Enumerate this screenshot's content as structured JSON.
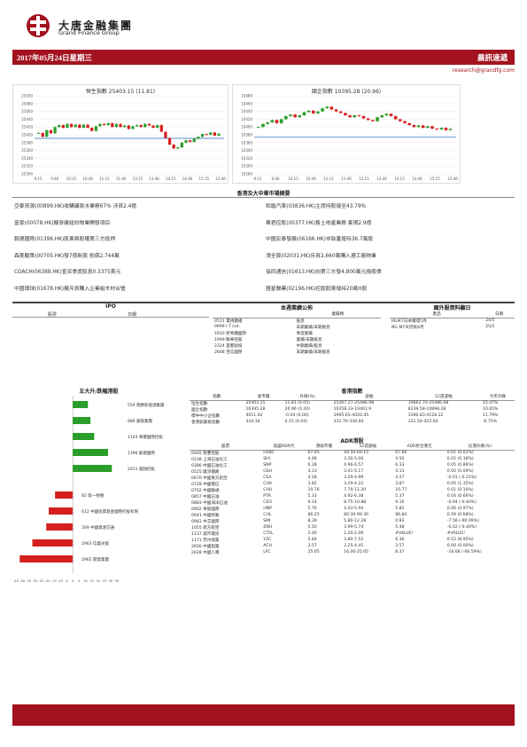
{
  "header": {
    "logo_cn": "大唐金融集團",
    "logo_en": "Grand Finance Group",
    "date": "2017年05月24日星期三",
    "title": "晨訊速遞",
    "email": "research@grandfg.com"
  },
  "colors": {
    "brand": "#a3121f",
    "up": "#2a9d2a",
    "down": "#d61f1f"
  },
  "chart_data": [
    {
      "type": "candlestick",
      "title": "恒生指數 25403.15 (11.81)",
      "x_ticks": [
        "9:15",
        "9:46",
        "10:15",
        "10:46",
        "11:15",
        "11:46",
        "13:15",
        "13:46",
        "14:15",
        "14:46",
        "15:15",
        "15:46"
      ],
      "y_ticks": [
        "25500",
        "25480",
        "25460",
        "25440",
        "25420",
        "25400",
        "25380",
        "25360",
        "25340",
        "25320",
        "25300"
      ],
      "ylim": [
        25300,
        25500
      ],
      "reference": 25391,
      "values": [
        25405,
        25395,
        25412,
        25404,
        25420,
        25425,
        25418,
        25428,
        25420,
        25426,
        25418,
        25426,
        25418,
        25410,
        25422,
        25428,
        25425,
        25430,
        25420,
        25428,
        25420,
        25424,
        25415,
        25422,
        25425,
        25420,
        25428,
        25424,
        25418,
        25425,
        25408,
        25392,
        25375,
        25365,
        25368,
        25380,
        25386,
        25382,
        25390,
        25395,
        25402,
        25400,
        25406,
        25398,
        25403
      ]
    },
    {
      "type": "candlestick",
      "title": "國企指數 10395.28 (20.96)",
      "x_ticks": [
        "9:15",
        "9:46",
        "10:15",
        "10:46",
        "11:15",
        "11:46",
        "13:15",
        "13:46",
        "14:15",
        "14:46",
        "15:15",
        "15:46"
      ],
      "y_ticks": [
        "10480",
        "10460",
        "10440",
        "10420",
        "10400",
        "10380",
        "10360",
        "10340",
        "10320",
        "10300",
        "10280"
      ],
      "ylim": [
        10280,
        10480
      ],
      "reference": 10374,
      "values": [
        10400,
        10408,
        10412,
        10418,
        10410,
        10420,
        10428,
        10432,
        10425,
        10430,
        10438,
        10442,
        10435,
        10440,
        10448,
        10452,
        10445,
        10440,
        10436,
        10430,
        10425,
        10430,
        10428,
        10422,
        10418,
        10415,
        10425,
        10430,
        10434,
        10428,
        10420,
        10415,
        10410,
        10405,
        10400,
        10404,
        10398,
        10402,
        10396,
        10394,
        10398,
        10392,
        10395
      ]
    }
  ],
  "market_summary": {
    "title": "香港及大中華市場摘要",
    "left": [
      "亞泰資源(00899.HK)收購礦泉水業務67% 涉資2.4億",
      "富豪(00078.HK)擬參建紐約物業開發項目",
      "毅德國際(01396.HK)股東將股權第三方抵押",
      "森美驅策(00705.HK)發7億新股 抵償2,744萬",
      "COACH(06388.HK)宣派季度股息0.3375美元",
      "中國環球(01678.HK)擬斥資購入企業組木材合營"
    ],
    "right": [
      "和諧汽車(03836.HK)主席持股增至43.79%",
      "華君控股(00377.HK)售土地產業務 套現2.9億",
      "中國宏泰發展(06166.HK)非執董增持36.7萬股",
      "濠全算(02031.HK)斥資2,660萬購入遼工廠物業",
      "協同通信(01613.HK)向第三方發4,800萬元換股債",
      "匯星醫藥(02196.HK)控股股東增持20萬H股"
    ]
  },
  "ipo": {
    "title": "IPO",
    "headers": [
      "股票",
      "日期"
    ]
  },
  "results": {
    "title": "本週業績公佈",
    "headers": [
      "",
      "業績類"
    ],
    "rows": [
      [
        "0511 電視廣播",
        "股息"
      ],
      [
        "0999 I.T Ltd.",
        "末期業績/末期股息"
      ],
      [
        "1910 新秀麗國際",
        "季度業績"
      ],
      [
        "1999 敏華控股",
        "業績/末期股息"
      ],
      [
        "2324 首都創投",
        "中期業績/股息"
      ],
      [
        "2668 百信國際",
        "末期業績/末期股息"
      ]
    ]
  },
  "overseas": {
    "title": "國外服資料顯日",
    "headers": [
      "產品",
      "日期"
    ],
    "rows": [
      [
        "IRUK7日本權證5月",
        "24/5"
      ],
      [
        "NG M7天然氣6月",
        "25/5"
      ]
    ]
  },
  "movers": {
    "title": "五大升/跌幅港股",
    "gainers": [
      {
        "label": "559 德勝新能源集團",
        "value": 12
      },
      {
        "label": "886 銀基集團",
        "value": 14
      },
      {
        "label": "1143 華寶國際控股",
        "value": 17
      },
      {
        "label": "1396 毅德國際",
        "value": 28
      },
      {
        "label": "2011 奧翔控股",
        "value": 31
      }
    ],
    "losers": [
      {
        "label": "82 第一視頻",
        "value": -14
      },
      {
        "label": "612 中國投資基金國際控股有限",
        "value": -19
      },
      {
        "label": "269 中國資源交通",
        "value": -21
      },
      {
        "label": "2963 信義光能",
        "value": -32
      },
      {
        "label": "2965 開發集團",
        "value": -42
      }
    ],
    "axis_ticks": [
      "-45",
      "-40",
      "-35",
      "-30",
      "-25",
      "-20",
      "-15",
      "-10",
      "-5",
      "0",
      "5",
      "10",
      "15",
      "20",
      "25",
      "30",
      "35"
    ],
    "xlim": [
      -45,
      35
    ]
  },
  "hk_index": {
    "title": "香港指數",
    "headers": [
      "指數",
      "收市價",
      "升跌(%)",
      "波幅",
      "52週波幅",
      "今年升跌"
    ],
    "rows": [
      [
        "恒生指數",
        "25403.15",
        "11.81 (0.05)",
        "25307.27-25486.98",
        "19662.70-25486.98",
        "15.47%"
      ],
      [
        "國企指數",
        "10395.28",
        "20.96 (0.20)",
        "10358.33-10461.9",
        "8239.58-10898.28",
        "10.65%"
      ],
      [
        "標中中小企指數",
        "4011.02",
        "-0.04 (0.00)",
        "3995.65-4020.45",
        "3390.83-4128.32",
        "11.79%"
      ],
      [
        "香港創業板指數",
        "334.34",
        "0.15 (0.04)",
        "331.70-336.94",
        "331.54-422.64",
        "-6.75%"
      ]
    ]
  },
  "adr": {
    "title": "ADR港股",
    "headers": [
      "股票",
      "美國ADR代",
      "港收市價",
      "52週波幅",
      "ADR折合港元",
      "比港升跌(%)"
    ],
    "rows": [
      [
        "0005 匯豐控股",
        "HSBC",
        "67.65",
        "44.50-69.15",
        "67.66",
        "0.01 (0.02%)"
      ],
      [
        "0338 上海石油化工",
        "SHI",
        "4.48",
        "3.30-5.06",
        "4.50",
        "0.02 (0.38%)"
      ],
      [
        "0386 中國石油化工",
        "SNP",
        "6.28",
        "4.96-6.57",
        "6.33",
        "0.05 (0.86%)"
      ],
      [
        "0525 廣深鐵路",
        "GSH",
        "4.13",
        "3.41-5.17",
        "4.13",
        "0.00 (0.09%)"
      ],
      [
        "0670 中國東方航空",
        "CEA",
        "4.28",
        "3.29-4.99",
        "4.27",
        "-0.01 (-0.21%)"
      ],
      [
        "0728 中國電信",
        "CHA",
        "3.82",
        "3.29-4.22",
        "3.87",
        "0.05 (1.35%)"
      ],
      [
        "0762 中國聯通",
        "CHU",
        "10.76",
        "7.70-11.20",
        "10.77",
        "0.01 (0.10%)"
      ],
      [
        "0857 中國石油",
        "PTR",
        "5.33",
        "4.92-6.38",
        "5.37",
        "0.04 (0.66%)"
      ],
      [
        "0883 中國海洋石油",
        "CEO",
        "9.14",
        "8.75-10.88",
        "9.10",
        "-0.04 (-0.40%)"
      ],
      [
        "0902 華能國際",
        "HNP",
        "5.76",
        "4.43-5.94",
        "5.82",
        "0.06 (0.97%)"
      ],
      [
        "0941 中國移動",
        "CHL",
        "86.25",
        "80.30-99.30",
        "86.84",
        "0.59 (0.68%)"
      ],
      [
        "0981 中芯國際",
        "SMI",
        "8.39",
        "5.80-12.28",
        "0.83",
        "-7.56 (-90.09%)"
      ],
      [
        "1055 南方航空",
        "ZNH",
        "5.50",
        "3.99-5.74",
        "5.48",
        "-0.02 (-0.40%)"
      ],
      [
        "1137 城市電訊",
        "CTEL",
        "2.00",
        "1.20-2.06",
        "#VALUE!",
        "#VALUE!"
      ],
      [
        "1171 兗州煤業",
        "YZC",
        "5.84",
        "3.80-7.52",
        "6.36",
        "0.52 (8.95%)"
      ],
      [
        "2600 中國鋁業",
        "ACH",
        "3.57",
        "2.25-4.45",
        "3.57",
        "0.00 (0.00%)"
      ],
      [
        "2628 中國人壽",
        "LFC",
        "25.05",
        "16.00-25.65",
        "8.37",
        "-16.68 (-66.59%)"
      ]
    ]
  }
}
